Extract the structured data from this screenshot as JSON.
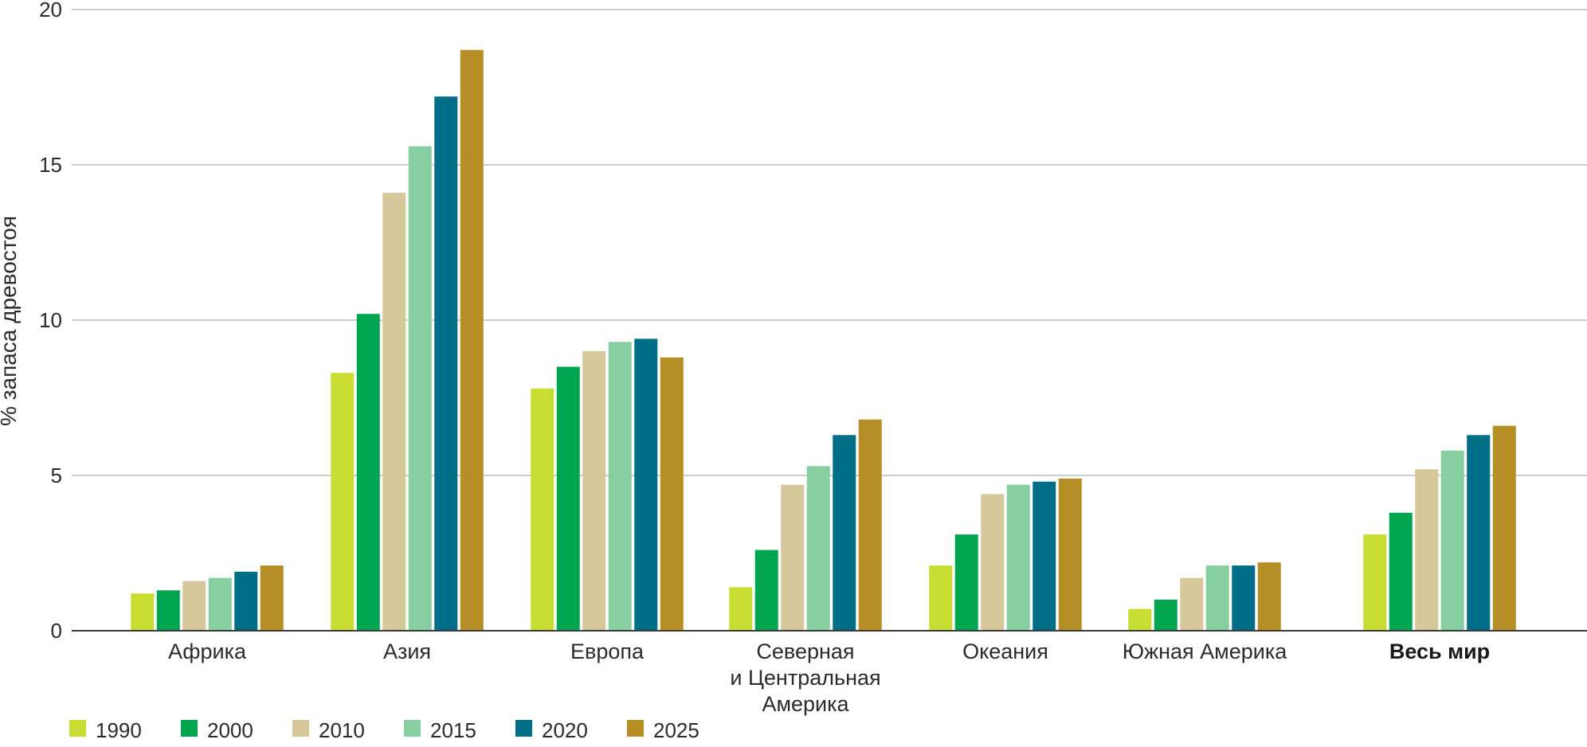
{
  "chart_data": {
    "type": "bar",
    "ylabel": "% запаса древостоя",
    "ylim": [
      0,
      20
    ],
    "yticks": [
      0,
      5,
      10,
      15,
      20
    ],
    "grid": true,
    "legend_position": "bottom-left",
    "categories": [
      [
        "Африка"
      ],
      [
        "Азия"
      ],
      [
        "Европа"
      ],
      [
        "Северная",
        "и Центральная",
        "Америка"
      ],
      [
        "Океания"
      ],
      [
        "Южная Америка"
      ],
      [
        "Весь мир"
      ]
    ],
    "bold_category": "Весь мир",
    "series": [
      {
        "name": "1990",
        "color": "#c8dc32",
        "values": [
          1.2,
          8.3,
          7.8,
          1.4,
          2.1,
          0.7,
          3.1
        ]
      },
      {
        "name": "2000",
        "color": "#00a550",
        "values": [
          1.3,
          10.2,
          8.5,
          2.6,
          3.1,
          1.0,
          3.8
        ]
      },
      {
        "name": "2010",
        "color": "#d6c89b",
        "values": [
          1.6,
          14.1,
          9.0,
          4.7,
          4.4,
          1.7,
          5.2
        ]
      },
      {
        "name": "2015",
        "color": "#87cfa0",
        "values": [
          1.7,
          15.6,
          9.3,
          5.3,
          4.7,
          2.1,
          5.8
        ]
      },
      {
        "name": "2020",
        "color": "#006e87",
        "values": [
          1.9,
          17.2,
          9.4,
          6.3,
          4.8,
          2.1,
          6.3
        ]
      },
      {
        "name": "2025",
        "color": "#b58e26",
        "values": [
          2.1,
          18.7,
          8.8,
          6.8,
          4.9,
          2.2,
          6.6
        ]
      }
    ]
  }
}
